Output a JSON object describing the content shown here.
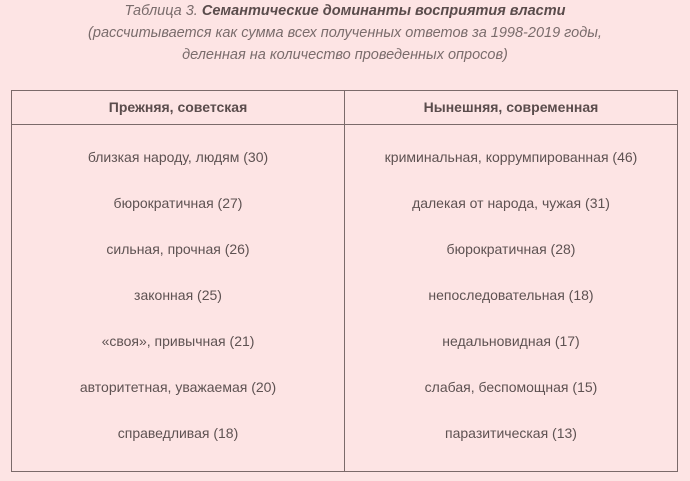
{
  "caption": {
    "label": "Таблица 3.",
    "title": "Семантические доминанты восприятия власти",
    "line2": "(рассчитывается как сумма всех полученных ответов за 1998-2019 годы,",
    "line3": "деленная на количество проведенных опросов)"
  },
  "table": {
    "headers": [
      "Прежняя, советская",
      "Нынешняя, современная"
    ],
    "former": [
      "близкая народу, людям (30)",
      "бюрократичная (27)",
      "сильная, прочная (26)",
      "законная (25)",
      "«своя», привычная (21)",
      "авторитетная, уважаемая (20)",
      "справедливая (18)"
    ],
    "current": [
      "криминальная, коррумпированная (46)",
      "далекая от народа, чужая (31)",
      "бюрократичная (28)",
      "непоследовательная (18)",
      "недальновидная (17)",
      "слабая, беспомощная (15)",
      "паразитическая (13)"
    ]
  }
}
